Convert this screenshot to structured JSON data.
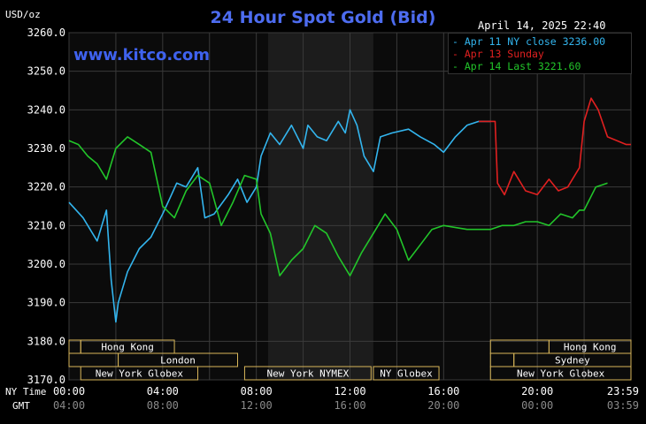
{
  "header": {
    "title": "24 Hour Spot Gold (Bid)",
    "unit": "USD/oz",
    "timestamp": "April 14, 2025 22:40",
    "brand": "www.kitco.com"
  },
  "legend": [
    {
      "label": "Apr 11 NY close 3236.00",
      "color": "#33b5ee"
    },
    {
      "label": "Apr 13 Sunday",
      "color": "#e02020"
    },
    {
      "label": "Apr 14 Last 3221.60",
      "color": "#22c52a"
    }
  ],
  "sessions": [
    {
      "label": "Hong Kong",
      "start": 0.5,
      "end": 4.5
    },
    {
      "label": "",
      "start": 0,
      "end": 0.5
    },
    {
      "label": "",
      "start": 0,
      "end": 2.1
    },
    {
      "label": "London",
      "start": 2.1,
      "end": 7.2
    },
    {
      "label": "New York Globex",
      "start": 0.5,
      "end": 5.5
    },
    {
      "label": "New York NYMEX",
      "start": 7.5,
      "end": 12.9
    },
    {
      "label": "NY Globex",
      "start": 13.0,
      "end": 15.8
    },
    {
      "label": "Hong Kong",
      "start": 20.5,
      "end": 24
    },
    {
      "label": "",
      "start": 18.0,
      "end": 20.5
    },
    {
      "label": "Sydney",
      "start": 19.0,
      "end": 24
    },
    {
      "label": "",
      "start": 18.0,
      "end": 19.0
    },
    {
      "label": "New York Globex",
      "start": 18.0,
      "end": 24
    }
  ],
  "chart_data": {
    "type": "line",
    "title": "24 Hour Spot Gold (Bid)",
    "ylabel": "USD/oz",
    "ylim": [
      3170,
      3260
    ],
    "yticks": [
      "3260.0",
      "3250.0",
      "3240.0",
      "3230.0",
      "3220.0",
      "3210.0",
      "3200.0",
      "3190.0",
      "3180.0",
      "3170.0"
    ],
    "xlim": [
      0,
      24
    ],
    "xtick_labels": [
      "00:00",
      "04:00",
      "08:00",
      "12:00",
      "16:00",
      "20:00",
      "23:59"
    ],
    "xtick_hours": [
      0,
      4,
      8,
      12,
      16,
      20,
      23.98
    ],
    "gmt_tick_labels": [
      "04:00",
      "08:00",
      "12:00",
      "16:00",
      "20:00",
      "00:00",
      "03:59"
    ],
    "axis_row_labels": {
      "ny": "NY Time",
      "gmt": "GMT"
    },
    "shaded_region_hours": [
      8.5,
      13.0
    ],
    "grid": true,
    "series": [
      {
        "name": "Apr 11 NY close 3236.00",
        "color": "#33b5ee",
        "x": [
          0,
          0.6,
          1.2,
          1.6,
          1.8,
          2.0,
          2.1,
          2.5,
          3.0,
          3.5,
          4.0,
          4.3,
          4.6,
          5.0,
          5.5,
          5.8,
          6.2,
          6.8,
          7.2,
          7.6,
          8.0,
          8.2,
          8.6,
          9.0,
          9.5,
          10.0,
          10.2,
          10.6,
          11.0,
          11.5,
          11.8,
          12.0,
          12.3,
          12.6,
          13.0,
          13.3,
          13.8,
          14.5,
          15.0,
          15.6,
          16.0,
          16.5,
          17.0,
          17.5,
          18.0
        ],
        "y": [
          3216,
          3212,
          3206,
          3214,
          3196,
          3185,
          3190,
          3198,
          3204,
          3207,
          3213,
          3217,
          3221,
          3220,
          3225,
          3212,
          3213,
          3218,
          3222,
          3216,
          3220,
          3228,
          3234,
          3231,
          3236,
          3230,
          3236,
          3233,
          3232,
          3237,
          3234,
          3240,
          3236,
          3228,
          3224,
          3233,
          3234,
          3235,
          3233,
          3231,
          3229,
          3233,
          3236,
          3237,
          3237
        ]
      },
      {
        "name": "Apr 13 Sunday",
        "color": "#e02020",
        "x": [
          17.5,
          18.2,
          18.3,
          18.6,
          19.0,
          19.5,
          20.0,
          20.5,
          20.9,
          21.3,
          21.8,
          22.0,
          22.3,
          22.6,
          23.0,
          23.4,
          23.8,
          24.0
        ],
        "y": [
          3237,
          3237,
          3221,
          3218,
          3224,
          3219,
          3218,
          3222,
          3219,
          3220,
          3225,
          3237,
          3243,
          3240,
          3233,
          3232,
          3231,
          3231
        ]
      },
      {
        "name": "Apr 14 Last 3221.60",
        "color": "#22c52a",
        "x": [
          0,
          0.4,
          0.8,
          1.2,
          1.6,
          2.0,
          2.5,
          3.0,
          3.5,
          4.0,
          4.5,
          5.0,
          5.5,
          6.0,
          6.5,
          7.0,
          7.5,
          8.0,
          8.2,
          8.6,
          9.0,
          9.5,
          10.0,
          10.5,
          11.0,
          11.5,
          12.0,
          12.5,
          13.0,
          13.5,
          14.0,
          14.5,
          15.0,
          15.5,
          16.0,
          17.0,
          18.0,
          18.5,
          19.0,
          19.5,
          20.0,
          20.5,
          21.0,
          21.5,
          21.8,
          22.0,
          22.5,
          23.0
        ],
        "y": [
          3232,
          3231,
          3228,
          3226,
          3222,
          3230,
          3233,
          3231,
          3229,
          3215,
          3212,
          3219,
          3223,
          3221,
          3210,
          3216,
          3223,
          3222,
          3213,
          3208,
          3197,
          3201,
          3204,
          3210,
          3208,
          3202,
          3197,
          3203,
          3208,
          3213,
          3209,
          3201,
          3205,
          3209,
          3210,
          3209,
          3209,
          3210,
          3210,
          3211,
          3211,
          3210,
          3213,
          3212,
          3214,
          3214,
          3220,
          3221
        ]
      }
    ]
  }
}
